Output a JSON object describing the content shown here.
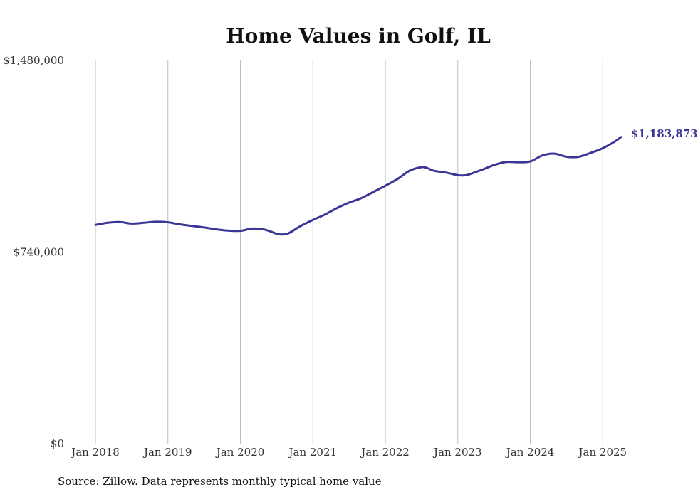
{
  "chart_data": {
    "type": "line",
    "title": "Home Values in Golf, IL",
    "ylim": [
      0,
      1480000
    ],
    "y_ticks": [
      {
        "value": 0,
        "label": "$0"
      },
      {
        "value": 740000,
        "label": "$740,000"
      },
      {
        "value": 1480000,
        "label": "$1,480,000"
      }
    ],
    "x_ticks": [
      {
        "value": "2018-01",
        "label": "Jan 2018"
      },
      {
        "value": "2019-01",
        "label": "Jan 2019"
      },
      {
        "value": "2020-01",
        "label": "Jan 2020"
      },
      {
        "value": "2021-01",
        "label": "Jan 2021"
      },
      {
        "value": "2022-01",
        "label": "Jan 2022"
      },
      {
        "value": "2023-01",
        "label": "Jan 2023"
      },
      {
        "value": "2024-01",
        "label": "Jan 2024"
      },
      {
        "value": "2025-01",
        "label": "Jan 2025"
      }
    ],
    "grid": "vertical",
    "series": [
      {
        "color": "#3b3595",
        "end_label": "$1,183,873",
        "points": [
          [
            "2018-01",
            845000
          ],
          [
            "2018-03",
            853000
          ],
          [
            "2018-05",
            856000
          ],
          [
            "2018-07",
            850000
          ],
          [
            "2018-09",
            853000
          ],
          [
            "2018-11",
            857000
          ],
          [
            "2019-01",
            855000
          ],
          [
            "2019-03",
            847000
          ],
          [
            "2019-05",
            841000
          ],
          [
            "2019-07",
            835000
          ],
          [
            "2019-09",
            828000
          ],
          [
            "2019-11",
            823000
          ],
          [
            "2020-01",
            822000
          ],
          [
            "2020-03",
            831000
          ],
          [
            "2020-05",
            827000
          ],
          [
            "2020-07",
            811000
          ],
          [
            "2020-08",
            808000
          ],
          [
            "2020-09",
            813000
          ],
          [
            "2020-11",
            841000
          ],
          [
            "2021-01",
            864000
          ],
          [
            "2021-03",
            885000
          ],
          [
            "2021-05",
            910000
          ],
          [
            "2021-07",
            931000
          ],
          [
            "2021-09",
            948000
          ],
          [
            "2021-11",
            972000
          ],
          [
            "2022-01",
            996000
          ],
          [
            "2022-03",
            1022000
          ],
          [
            "2022-05",
            1054000
          ],
          [
            "2022-07",
            1068000
          ],
          [
            "2022-08",
            1064000
          ],
          [
            "2022-09",
            1054000
          ],
          [
            "2022-11",
            1047000
          ],
          [
            "2023-01",
            1037000
          ],
          [
            "2023-02",
            1036000
          ],
          [
            "2023-03",
            1041000
          ],
          [
            "2023-05",
            1058000
          ],
          [
            "2023-07",
            1076000
          ],
          [
            "2023-09",
            1088000
          ],
          [
            "2023-11",
            1087000
          ],
          [
            "2024-01",
            1090000
          ],
          [
            "2024-03",
            1113000
          ],
          [
            "2024-05",
            1120000
          ],
          [
            "2024-07",
            1108000
          ],
          [
            "2024-09",
            1108000
          ],
          [
            "2024-11",
            1123000
          ],
          [
            "2025-01",
            1141000
          ],
          [
            "2025-03",
            1167000
          ],
          [
            "2025-04",
            1183873
          ]
        ]
      }
    ]
  },
  "footer": {
    "source": "Source: Zillow. Data represents monthly typical home value"
  }
}
